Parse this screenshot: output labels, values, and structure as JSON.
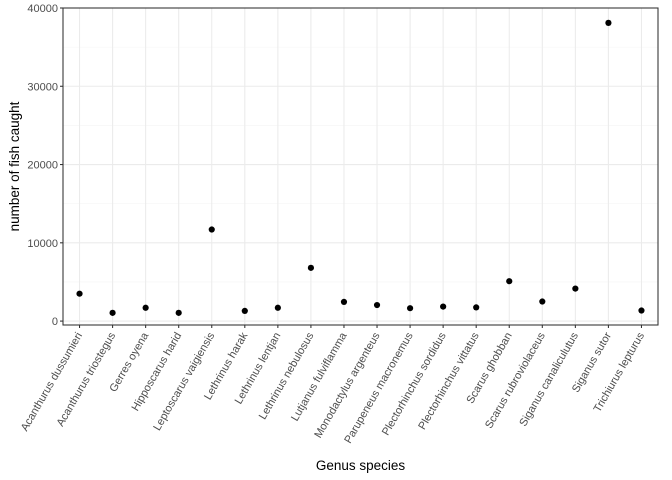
{
  "chart_data": {
    "type": "scatter",
    "xlabel": "Genus species",
    "ylabel": "number of fish caught",
    "ylim": [
      -500,
      40000
    ],
    "yticks": [
      0,
      10000,
      20000,
      30000,
      40000
    ],
    "ytick_labels": [
      "0",
      "10000",
      "20000",
      "30000",
      "40000"
    ],
    "grid": true,
    "point_color": "#000000",
    "categories": [
      "Acanthurus dussumieri",
      "Acanthurus triostegus",
      "Gerres oyena",
      "Hipposcarus harid",
      "Leptoscarus vaigiensis",
      "Lethrinus harak",
      "Lethrinus lentjan",
      "Lethrinus nebulosus",
      "Lutjanus fulviflamma",
      "Monodactylus argenteus",
      "Parupeneus macronemus",
      "Plectorhinchus sordidus",
      "Plectorhinchus vittatus",
      "Scarus ghobban",
      "Scarus rubroviolaceus",
      "Siganus canaliculutus",
      "Siganus sutor",
      "Trichiurus lepturus"
    ],
    "values": [
      3500,
      1050,
      1700,
      1050,
      11700,
      1300,
      1700,
      6800,
      2450,
      2050,
      1650,
      1850,
      1750,
      5100,
      2500,
      4150,
      38100,
      1350
    ]
  }
}
